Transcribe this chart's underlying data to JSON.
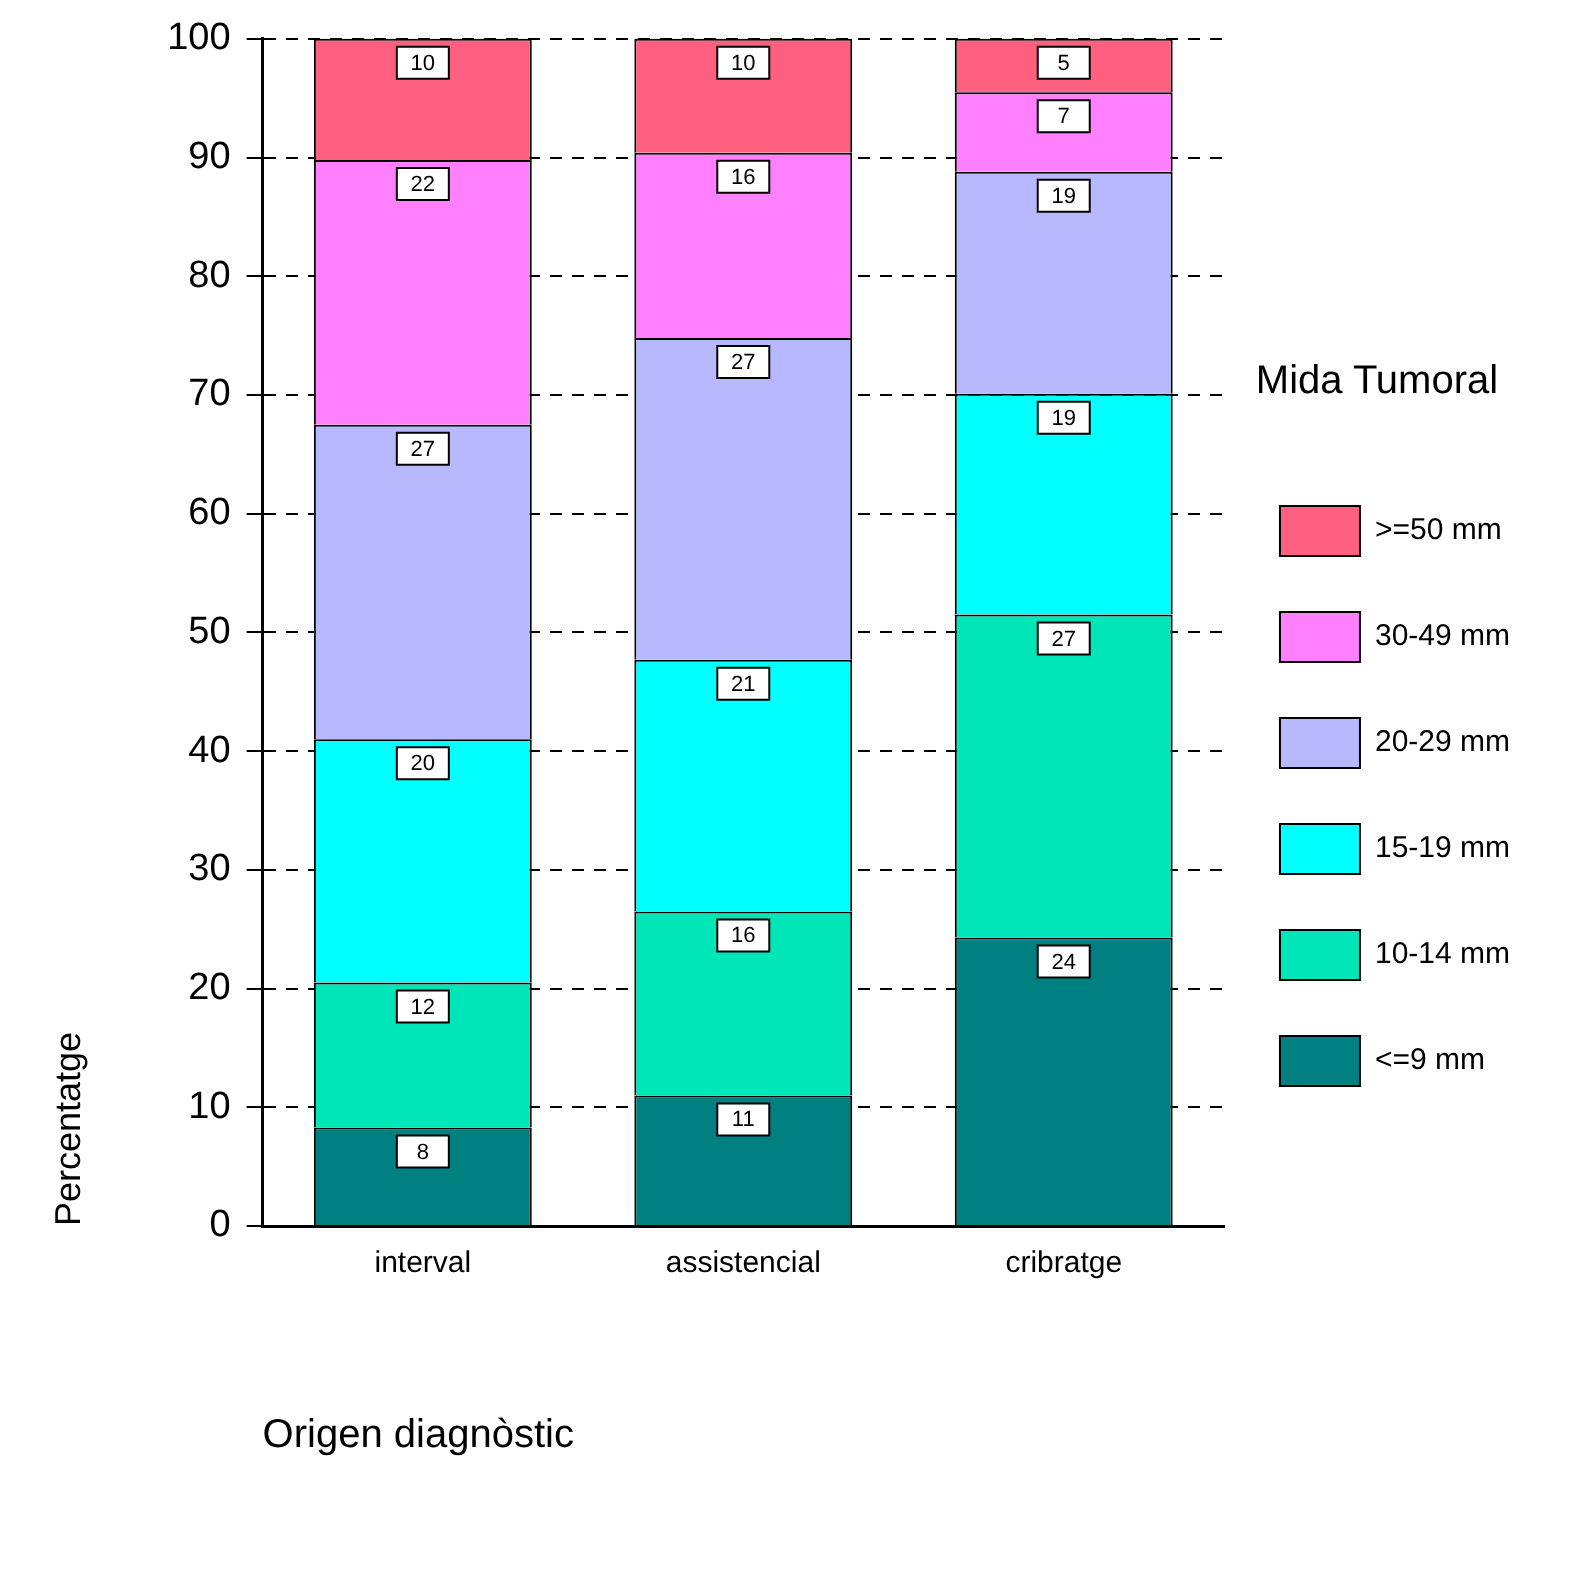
{
  "chart_data": {
    "type": "bar",
    "stacked": true,
    "xlabel": "Origen diagnòstic",
    "ylabel": "Percentatge",
    "legend_title": "Mida Tumoral",
    "legend": "right",
    "grid": "y",
    "line_style": "dashed",
    "categories": [
      "interval",
      "assistencial",
      "cribratge"
    ],
    "ylim": [
      0,
      100
    ],
    "yticks": [
      0,
      10,
      20,
      30,
      40,
      50,
      60,
      70,
      80,
      90,
      100
    ],
    "series": [
      {
        "name": "<=9 mm",
        "color": "#008080",
        "values": [
          8.3,
          11,
          24.3
        ],
        "value_labels": [
          "8",
          "11",
          "24"
        ]
      },
      {
        "name": "10-14 mm",
        "color": "#00e6b8",
        "values": [
          12.2,
          15.5,
          27.2
        ],
        "value_labels": [
          "12",
          "16",
          "27"
        ]
      },
      {
        "name": "15-19 mm",
        "color": "#00ffff",
        "values": [
          20.5,
          21.2,
          18.6
        ],
        "value_labels": [
          "20",
          "21",
          "19"
        ]
      },
      {
        "name": "20-29 mm",
        "color": "#b8b8ff",
        "values": [
          26.5,
          27.1,
          18.7
        ],
        "value_labels": [
          "27",
          "27",
          "19"
        ]
      },
      {
        "name": "30-49 mm",
        "color": "#ff80ff",
        "values": [
          22.3,
          15.6,
          6.7
        ],
        "value_labels": [
          "22",
          "16",
          "7"
        ]
      },
      {
        "name": ">=50 mm",
        "color": "#ff6080",
        "values": [
          10.2,
          9.6,
          4.5
        ],
        "value_labels": [
          "10",
          "10",
          "5"
        ]
      }
    ]
  }
}
